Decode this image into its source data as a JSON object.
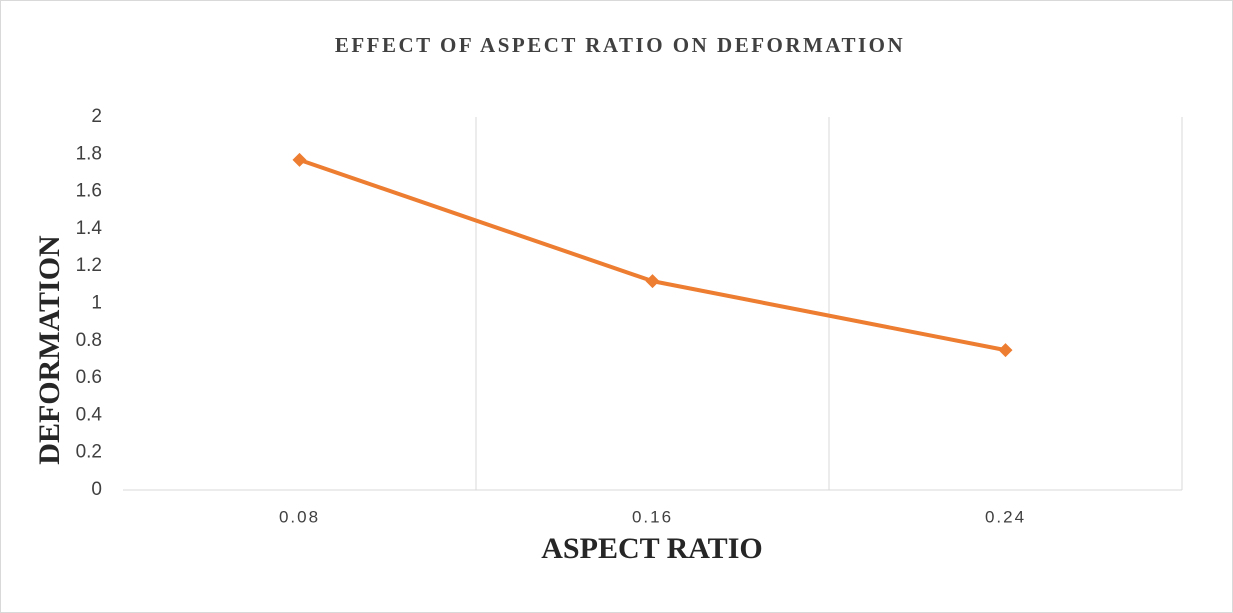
{
  "chart_data": {
    "type": "line",
    "title": "EFFECT OF ASPECT RATIO ON DEFORMATION",
    "xlabel": "ASPECT RATIO",
    "ylabel": "DEFORMATION",
    "categories": [
      "0.08",
      "0.16",
      "0.24"
    ],
    "series": [
      {
        "name": "DEFORMATION",
        "color": "#ed7d31",
        "values": [
          1.77,
          1.12,
          0.75
        ]
      }
    ],
    "ylim": [
      0,
      2
    ],
    "yticks": [
      0,
      0.2,
      0.4,
      0.6,
      0.8,
      1,
      1.2,
      1.4,
      1.6,
      1.8,
      2
    ],
    "xgrid": true,
    "legend": false
  }
}
